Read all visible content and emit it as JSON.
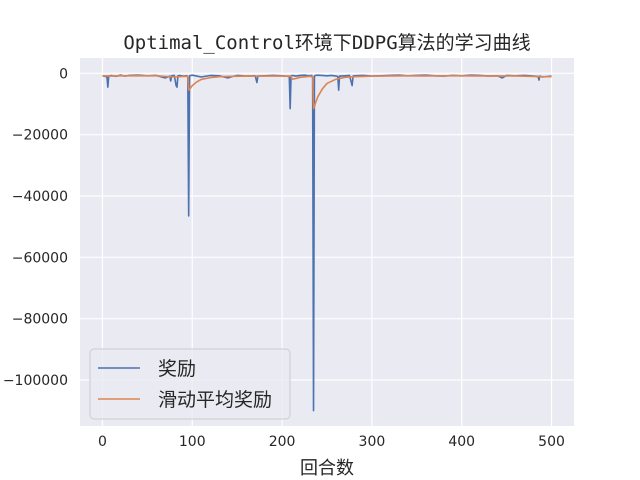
{
  "chart_data": {
    "type": "line",
    "title": "Optimal_Control环境下DDPG算法的学习曲线",
    "xlabel": "回合数",
    "ylabel": "",
    "xlim": [
      -25,
      525
    ],
    "ylim": [
      -115000,
      5000
    ],
    "xticks": [
      0,
      100,
      200,
      300,
      400,
      500
    ],
    "xtick_labels": [
      "0",
      "100",
      "200",
      "300",
      "400",
      "500"
    ],
    "yticks": [
      0,
      -20000,
      -40000,
      -60000,
      -80000,
      -100000
    ],
    "ytick_labels": [
      "0",
      "−20000",
      "−40000",
      "−60000",
      "−80000",
      "−100000"
    ],
    "grid": true,
    "background": "#eaeaf2",
    "legend_position": "lower-left",
    "series": [
      {
        "name": "奖励",
        "color": "#4c72b0",
        "x": [
          0,
          3,
          5,
          6,
          7,
          10,
          15,
          20,
          25,
          30,
          40,
          50,
          60,
          70,
          75,
          76,
          77,
          80,
          82,
          83,
          84,
          86,
          90,
          94,
          95,
          96,
          97,
          98,
          100,
          105,
          110,
          120,
          130,
          140,
          145,
          150,
          160,
          170,
          172,
          173,
          180,
          190,
          200,
          208,
          209,
          210,
          212,
          215,
          220,
          225,
          230,
          233,
          234,
          235,
          236,
          237,
          240,
          250,
          255,
          260,
          262,
          263,
          264,
          270,
          275,
          278,
          279,
          280,
          290,
          300,
          310,
          320,
          330,
          340,
          350,
          360,
          370,
          380,
          390,
          400,
          410,
          420,
          430,
          440,
          445,
          450,
          460,
          470,
          480,
          485,
          486,
          487,
          490,
          500
        ],
        "y": [
          -800,
          -1000,
          -1200,
          -4500,
          -900,
          -700,
          -1000,
          -600,
          -900,
          -700,
          -600,
          -800,
          -700,
          -1500,
          -900,
          -2500,
          -800,
          -700,
          -4000,
          -4500,
          -800,
          -700,
          -900,
          -800,
          -1000,
          -46500,
          -800,
          -700,
          -600,
          -900,
          -1200,
          -700,
          -800,
          -1500,
          -1000,
          -700,
          -900,
          -800,
          -3000,
          -900,
          -800,
          -700,
          -800,
          -1000,
          -11500,
          -800,
          -700,
          -900,
          -700,
          -600,
          -800,
          -700,
          -1500,
          -110000,
          -900,
          -700,
          -600,
          -800,
          -700,
          -900,
          -1000,
          -5500,
          -900,
          -800,
          -700,
          -4000,
          -900,
          -800,
          -700,
          -900,
          -800,
          -700,
          -600,
          -800,
          -700,
          -600,
          -800,
          -900,
          -700,
          -800,
          -600,
          -700,
          -900,
          -800,
          -1500,
          -700,
          -800,
          -700,
          -900,
          -1000,
          -2200,
          -900,
          -1200,
          -900
        ]
      },
      {
        "name": "滑动平均奖励",
        "color": "#dd8452",
        "x": [
          0,
          10,
          20,
          40,
          60,
          80,
          90,
          95,
          96,
          97,
          100,
          105,
          110,
          120,
          130,
          140,
          160,
          180,
          200,
          210,
          211,
          215,
          220,
          230,
          234,
          235,
          236,
          238,
          240,
          245,
          250,
          260,
          270,
          280,
          290,
          300,
          320,
          340,
          360,
          380,
          400,
          420,
          440,
          460,
          480,
          490,
          500
        ],
        "y": [
          -800,
          -900,
          -800,
          -800,
          -800,
          -1200,
          -1000,
          -1000,
          -5500,
          -5200,
          -4000,
          -2800,
          -2000,
          -1400,
          -1100,
          -1000,
          -900,
          -900,
          -900,
          -900,
          -1900,
          -1700,
          -1300,
          -1000,
          -1000,
          -11500,
          -10800,
          -9000,
          -7500,
          -5000,
          -3300,
          -1900,
          -1300,
          -1100,
          -1000,
          -900,
          -850,
          -800,
          -850,
          -800,
          -800,
          -850,
          -850,
          -850,
          -1000,
          -1100,
          -1100
        ]
      }
    ]
  }
}
